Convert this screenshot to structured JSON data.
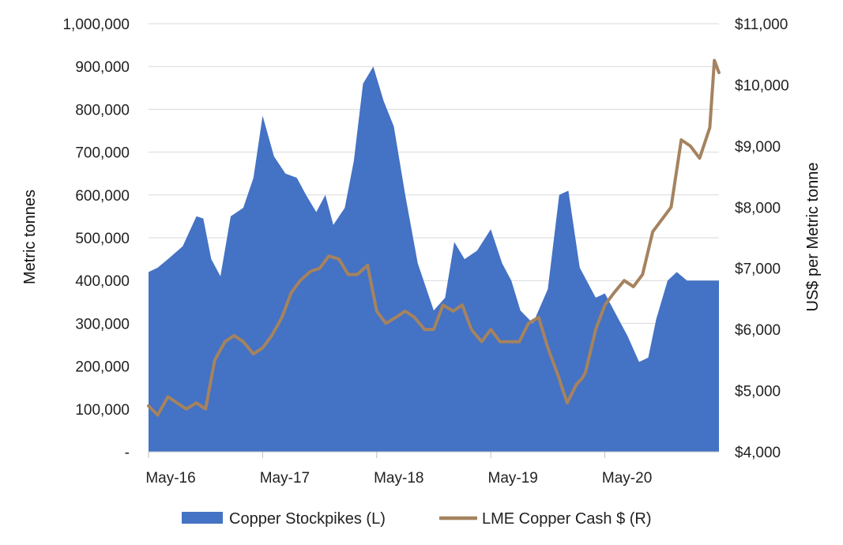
{
  "chart_data": {
    "type": "area",
    "title": "",
    "legend": {
      "placement": "bottom",
      "entries": [
        "Copper Stockpikes (L)",
        "LME Copper Cash $ (R)"
      ]
    },
    "grid": true,
    "x_axis": {
      "tick_labels": [
        "May-16",
        "May-17",
        "May-18",
        "May-19",
        "May-20"
      ],
      "range": [
        "2016-05",
        "2021-05"
      ]
    },
    "y_left": {
      "label": "Metric tonnes",
      "range": [
        0,
        1000000
      ],
      "tick_labels": [
        "-",
        "100,000",
        "200,000",
        "300,000",
        "400,000",
        "500,000",
        "600,000",
        "700,000",
        "800,000",
        "900,000",
        "1,000,000"
      ]
    },
    "y_right": {
      "label": "US$ per Metric tonne",
      "range": [
        4000,
        11000
      ],
      "tick_labels": [
        "$4,000",
        "$5,000",
        "$6,000",
        "$7,000",
        "$8,000",
        "$9,000",
        "$10,000",
        "$11,000"
      ]
    },
    "colors": {
      "stockpiles": "#4472C4",
      "lme": "#A5835F",
      "grid": "#d9d9d9"
    },
    "series": [
      {
        "name": "Copper Stockpikes (L)",
        "axis": "left",
        "type": "area",
        "x": [
          0,
          0.08,
          0.17,
          0.3,
          0.42,
          0.48,
          0.55,
          0.63,
          0.72,
          0.83,
          0.92,
          1.0,
          1.1,
          1.2,
          1.3,
          1.38,
          1.47,
          1.55,
          1.62,
          1.72,
          1.8,
          1.88,
          1.97,
          2.06,
          2.15,
          2.25,
          2.36,
          2.5,
          2.6,
          2.68,
          2.77,
          2.88,
          3.0,
          3.1,
          3.18,
          3.26,
          3.37,
          3.5,
          3.6,
          3.68,
          3.78,
          3.92,
          4.0,
          4.1,
          4.2,
          4.3,
          4.38,
          4.45,
          4.55,
          4.63,
          4.72,
          4.8,
          4.88,
          5.0
        ],
        "values": [
          420000,
          430000,
          450000,
          480000,
          550000,
          545000,
          450000,
          410000,
          550000,
          570000,
          640000,
          785000,
          690000,
          650000,
          640000,
          600000,
          560000,
          600000,
          530000,
          570000,
          680000,
          860000,
          900000,
          820000,
          760000,
          600000,
          440000,
          330000,
          360000,
          490000,
          450000,
          470000,
          520000,
          440000,
          400000,
          330000,
          300000,
          380000,
          600000,
          610000,
          430000,
          360000,
          370000,
          320000,
          270000,
          210000,
          220000,
          310000,
          400000,
          420000,
          400000,
          400000,
          400000,
          400000
        ]
      },
      {
        "name": "LME Copper Cash $ (R)",
        "axis": "right",
        "type": "line",
        "x": [
          0,
          0.08,
          0.17,
          0.25,
          0.33,
          0.42,
          0.5,
          0.58,
          0.67,
          0.75,
          0.83,
          0.92,
          1.0,
          1.08,
          1.17,
          1.25,
          1.33,
          1.42,
          1.5,
          1.58,
          1.67,
          1.75,
          1.83,
          1.92,
          2.0,
          2.08,
          2.17,
          2.25,
          2.33,
          2.42,
          2.5,
          2.58,
          2.67,
          2.75,
          2.83,
          2.92,
          3.0,
          3.08,
          3.17,
          3.25,
          3.33,
          3.42,
          3.5,
          3.58,
          3.67,
          3.75,
          3.8,
          3.83,
          3.92,
          4.0,
          4.08,
          4.17,
          4.25,
          4.33,
          4.42,
          4.5,
          4.58,
          4.67,
          4.75,
          4.83,
          4.92,
          4.96,
          5.0
        ],
        "values": [
          4750,
          4600,
          4900,
          4800,
          4700,
          4800,
          4700,
          5500,
          5800,
          5900,
          5800,
          5600,
          5700,
          5900,
          6200,
          6600,
          6800,
          6950,
          7000,
          7200,
          7150,
          6900,
          6900,
          7050,
          6300,
          6100,
          6200,
          6300,
          6200,
          6000,
          6000,
          6400,
          6300,
          6400,
          6000,
          5800,
          6000,
          5800,
          5800,
          5800,
          6100,
          6200,
          5700,
          5300,
          4800,
          5100,
          5200,
          5300,
          6000,
          6400,
          6600,
          6800,
          6700,
          6900,
          7600,
          7800,
          8000,
          9100,
          9000,
          8800,
          9300,
          10400,
          10200
        ]
      }
    ]
  }
}
